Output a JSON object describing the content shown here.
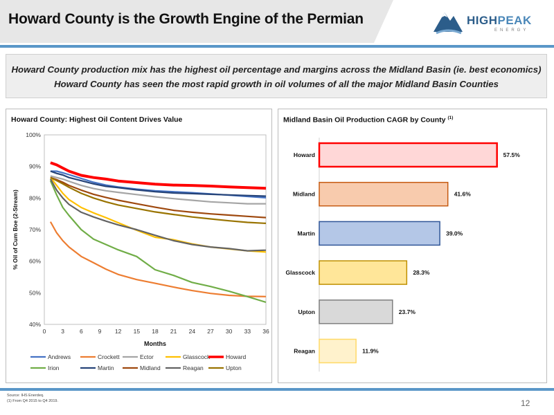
{
  "header": {
    "title": "Howard County is the Growth Engine of the Permian",
    "logo_text_a": "HIGH",
    "logo_text_b": "PEAK",
    "logo_sub": "ENERGY"
  },
  "summary": {
    "line1": "Howard County production mix has the highest oil percentage and margins across the Midland Basin (ie. best economics)",
    "line2": "Howard County has seen the most rapid growth in oil volumes of all the major Midland Basin Counties"
  },
  "footnotes": {
    "source": "Source: IHS Enerdeq.",
    "note1": "(1)    From Q4 2015 to Q4 2019."
  },
  "page_number": "12",
  "colors": {
    "Andrews": "#4472c4",
    "Crockett": "#ed7d31",
    "Ector": "#a5a5a5",
    "Glasscock": "#ffc000",
    "Howard": "#ff0000",
    "Irion": "#70ad47",
    "Martin": "#264478",
    "Midland": "#9e480e",
    "Reagan": "#636363",
    "Upton": "#997300"
  },
  "chart_data": [
    {
      "type": "line",
      "title": "Howard County: Highest Oil Content Drives Value",
      "xlabel": "Months",
      "ylabel": "% Oil of Cum Boe (2-Stream)",
      "xlim": [
        0,
        36
      ],
      "ylim": [
        40,
        100
      ],
      "x_ticks": [
        "0",
        "3",
        "6",
        "9",
        "12",
        "15",
        "18",
        "21",
        "24",
        "27",
        "30",
        "33",
        "36"
      ],
      "y_ticks": [
        "40%",
        "50%",
        "60%",
        "70%",
        "80%",
        "90%",
        "100%"
      ],
      "legend_position": "bottom",
      "x": [
        1,
        2,
        3,
        4,
        6,
        8,
        10,
        12,
        15,
        18,
        21,
        24,
        27,
        30,
        33,
        36
      ],
      "series": [
        {
          "name": "Andrews",
          "values": [
            88.5,
            88.5,
            88,
            87.4,
            86.2,
            85,
            84.1,
            83.5,
            82.8,
            82.3,
            82.0,
            81.7,
            81.3,
            80.9,
            80.5,
            80.1
          ]
        },
        {
          "name": "Crockett",
          "values": [
            72.5,
            69,
            66.5,
            64.5,
            61.5,
            59.5,
            57.5,
            55.8,
            54.2,
            53,
            51.8,
            50.7,
            49.8,
            49.2,
            48.9,
            48.8
          ]
        },
        {
          "name": "Ector",
          "values": [
            87,
            86.5,
            86,
            85.3,
            84,
            83,
            82.3,
            81.8,
            81.1,
            80.4,
            79.8,
            79.3,
            78.8,
            78.5,
            78.2,
            78.2
          ]
        },
        {
          "name": "Glasscock",
          "values": [
            86.5,
            84,
            81.5,
            79.5,
            77,
            75.3,
            73.8,
            72.2,
            69.8,
            67.6,
            66.8,
            65.5,
            64.5,
            63.9,
            63.3,
            62.9
          ]
        },
        {
          "name": "Howard",
          "values": [
            91.2,
            90.5,
            89.5,
            88.5,
            87.2,
            86.5,
            86,
            85.4,
            84.9,
            84.4,
            84.1,
            84.0,
            83.8,
            83.5,
            83.3,
            83.1
          ]
        },
        {
          "name": "Irion",
          "values": [
            85.5,
            81,
            77,
            74.5,
            70,
            67,
            65.3,
            63.6,
            61.5,
            57.3,
            55.5,
            53.3,
            52,
            50.5,
            48.8,
            47
          ]
        },
        {
          "name": "Martin",
          "values": [
            88.5,
            87.8,
            87.3,
            86.5,
            85.5,
            84.5,
            83.7,
            83.3,
            82.6,
            82,
            81.6,
            81.4,
            81.2,
            81,
            80.8,
            80.6
          ]
        },
        {
          "name": "Midland",
          "values": [
            86.5,
            85.8,
            85,
            84,
            82.5,
            81.2,
            80.2,
            79.3,
            78.2,
            77.1,
            76.1,
            75.5,
            75,
            74.6,
            74.2,
            73.8
          ]
        },
        {
          "name": "Reagan",
          "values": [
            86,
            82.5,
            80,
            78,
            75.5,
            74,
            72.7,
            71.5,
            70,
            68.2,
            66.5,
            65.3,
            64.5,
            64,
            63.3,
            63.5
          ]
        },
        {
          "name": "Upton",
          "values": [
            86.5,
            85.5,
            84.5,
            83.4,
            81.5,
            80,
            78.8,
            77.8,
            76.7,
            75.6,
            74.8,
            74,
            73.4,
            72.8,
            72.3,
            72
          ]
        }
      ]
    },
    {
      "type": "bar",
      "orientation": "horizontal",
      "title": "Midland Basin Oil Production CAGR by County",
      "title_note": "(1)",
      "xlim": [
        0,
        70
      ],
      "categories": [
        "Howard",
        "Midland",
        "Martin",
        "Glasscock",
        "Upton",
        "Reagan"
      ],
      "values": [
        57.5,
        41.6,
        39.0,
        28.3,
        23.7,
        11.9
      ],
      "labels": [
        "57.5%",
        "41.6%",
        "39.0%",
        "28.3%",
        "23.7%",
        "11.9%"
      ],
      "fills": [
        "#ffd7d7",
        "#f8cbad",
        "#b4c7e7",
        "#ffe699",
        "#d9d9d9",
        "#fff2cc"
      ],
      "strokes": [
        "#ff0000",
        "#c55a11",
        "#2f5597",
        "#bf9000",
        "#7f7f7f",
        "#ffd966"
      ]
    }
  ]
}
